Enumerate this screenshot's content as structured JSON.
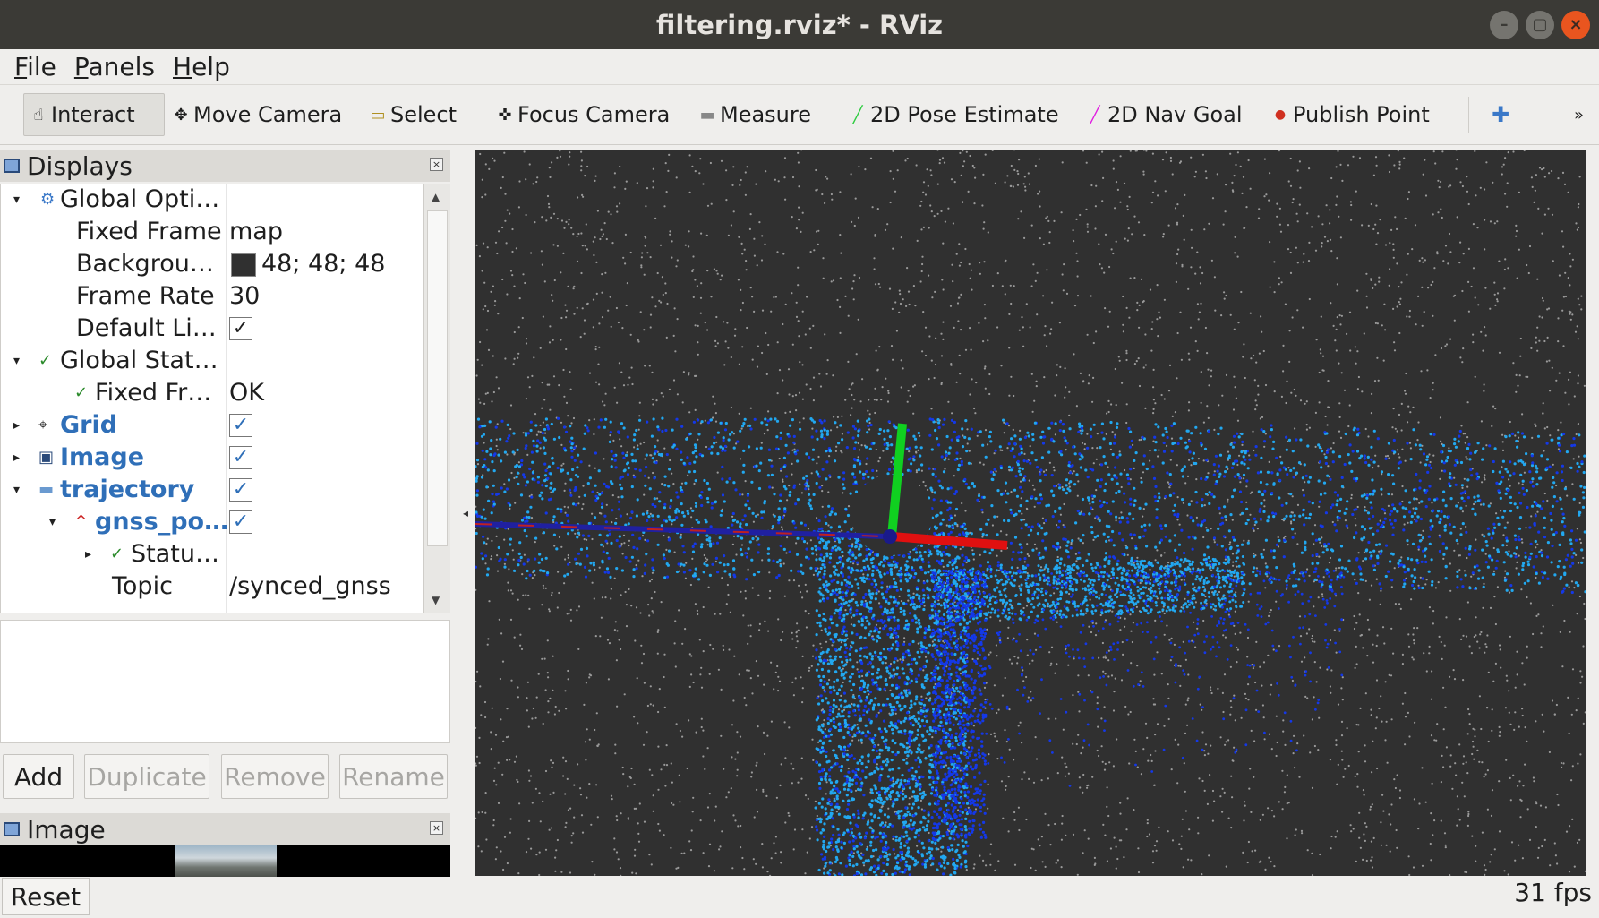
{
  "window": {
    "title": "filtering.rviz* - RViz",
    "controls": [
      "minimize",
      "maximize",
      "close"
    ]
  },
  "menu": {
    "items": [
      {
        "label_u": "F",
        "label_rest": "ile"
      },
      {
        "label_u": "P",
        "label_rest": "anels"
      },
      {
        "label_u": "H",
        "label_rest": "elp"
      }
    ]
  },
  "toolbar": {
    "tools": [
      {
        "label": "Interact",
        "icon": "hand-icon",
        "glyph": "☝",
        "active": true
      },
      {
        "label": "Move Camera",
        "icon": "move-icon",
        "glyph": "✥",
        "active": false
      },
      {
        "label": "Select",
        "icon": "select-icon",
        "glyph": "▭",
        "active": false
      },
      {
        "label": "Focus Camera",
        "icon": "focus-icon",
        "glyph": "✜",
        "active": false
      },
      {
        "label": "Measure",
        "icon": "ruler-icon",
        "glyph": "▬",
        "active": false
      },
      {
        "label": "2D Pose Estimate",
        "icon": "pose-icon",
        "glyph": "╱",
        "active": false,
        "color": "#2ecc40"
      },
      {
        "label": "2D Nav Goal",
        "icon": "nav-goal-icon",
        "glyph": "╱",
        "active": false,
        "color": "#e020e0"
      },
      {
        "label": "Publish Point",
        "icon": "pin-icon",
        "glyph": "●",
        "active": false,
        "color": "#d03020"
      }
    ],
    "add_tool_glyph": "✚",
    "overflow_glyph": "»"
  },
  "displays_panel": {
    "title": "Displays",
    "close_glyph": "×",
    "rows": [
      {
        "name": "Global Opti…",
        "indent": 0,
        "arrow": "▾",
        "icon": "gear-icon",
        "glyph": "⚙",
        "icon_color": "#3a78c8",
        "blue": false
      },
      {
        "name": "Fixed Frame",
        "indent": 1,
        "value": "map"
      },
      {
        "name": "Backgrou…",
        "indent": 1,
        "value": "48; 48; 48",
        "swatch": "#303030"
      },
      {
        "name": "Frame Rate",
        "indent": 1,
        "value": "30"
      },
      {
        "name": "Default Li…",
        "indent": 1,
        "check": "✓",
        "check_blue": false
      },
      {
        "name": "Global Stat…",
        "indent": 0,
        "arrow": "▾",
        "icon": "ok-icon",
        "glyph": "✓",
        "icon_color": "#2a8a2a",
        "blue": false
      },
      {
        "name": "Fixed Fr…",
        "indent": 1,
        "icon": "ok-icon",
        "glyph": "✓",
        "icon_color": "#2a8a2a",
        "value": "OK"
      },
      {
        "name": "Grid",
        "indent": 0,
        "arrow": "▸",
        "icon": "grid-icon",
        "glyph": "⌖",
        "icon_color": "#333333",
        "blue": true,
        "check": "✓",
        "check_blue": true
      },
      {
        "name": "Image",
        "indent": 0,
        "arrow": "▸",
        "icon": "image-icon",
        "glyph": "▣",
        "icon_color": "#2a4a7a",
        "blue": true,
        "check": "✓",
        "check_blue": true
      },
      {
        "name": "trajectory",
        "indent": 0,
        "arrow": "▾",
        "icon": "folder-icon",
        "glyph": "▬",
        "icon_color": "#6a9ad0",
        "blue": true,
        "check": "✓",
        "check_blue": true
      },
      {
        "name": "gnss_po…",
        "indent": 1,
        "arrow": "▾",
        "icon": "path-icon",
        "glyph": "^",
        "icon_color": "#cc2222",
        "blue": true,
        "check": "✓",
        "check_blue": true
      },
      {
        "name": "Statu…",
        "indent": 2,
        "arrow": "▸",
        "icon": "ok-icon",
        "glyph": "✓",
        "icon_color": "#2a8a2a"
      },
      {
        "name": "Topic",
        "indent": 2,
        "value": "/synced_gnss"
      }
    ],
    "buttons": [
      {
        "label": "Add",
        "enabled": true
      },
      {
        "label": "Duplicate",
        "enabled": false
      },
      {
        "label": "Remove",
        "enabled": false
      },
      {
        "label": "Rename",
        "enabled": false
      }
    ]
  },
  "image_panel": {
    "title": "Image",
    "close_glyph": "×"
  },
  "status": {
    "reset_label": "Reset",
    "fps": "31 fps"
  },
  "colors": {
    "background": "#303030",
    "points_gray": "#9a9a9a",
    "points_cyan": "#22a8f0",
    "points_blue": "#1438e8",
    "axis_x": "#e01010",
    "axis_y": "#10d020",
    "path": "#2020a0"
  }
}
